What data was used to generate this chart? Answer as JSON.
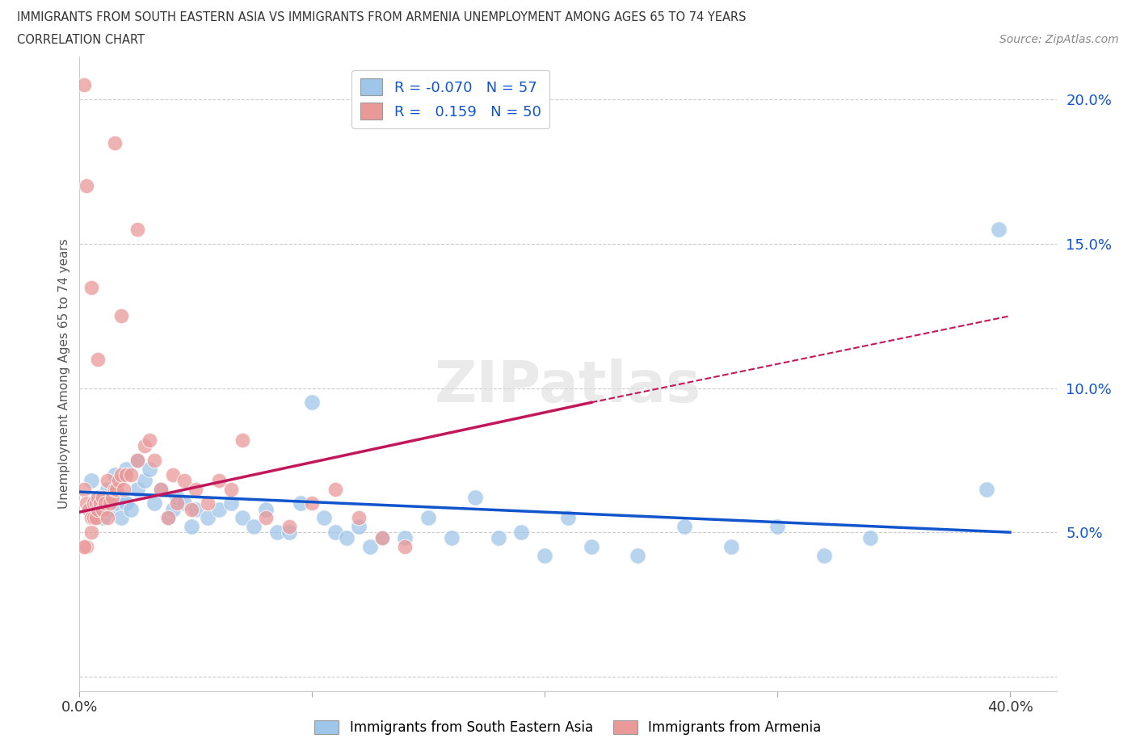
{
  "title_line1": "IMMIGRANTS FROM SOUTH EASTERN ASIA VS IMMIGRANTS FROM ARMENIA UNEMPLOYMENT AMONG AGES 65 TO 74 YEARS",
  "title_line2": "CORRELATION CHART",
  "source": "Source: ZipAtlas.com",
  "ylabel": "Unemployment Among Ages 65 to 74 years",
  "xlim": [
    0.0,
    0.42
  ],
  "ylim": [
    -0.005,
    0.215
  ],
  "yticks": [
    0.0,
    0.05,
    0.1,
    0.15,
    0.2
  ],
  "ytick_labels": [
    "",
    "5.0%",
    "10.0%",
    "15.0%",
    "20.0%"
  ],
  "xticks": [
    0.0,
    0.1,
    0.2,
    0.3,
    0.4
  ],
  "xtick_labels": [
    "0.0%",
    "",
    "",
    "",
    "40.0%"
  ],
  "blue_label": "Immigrants from South Eastern Asia",
  "pink_label": "Immigrants from Armenia",
  "blue_r": -0.07,
  "blue_n": 57,
  "pink_r": 0.159,
  "pink_n": 50,
  "blue_color": "#9fc5e8",
  "pink_color": "#ea9999",
  "blue_line_color": "#1155cc",
  "pink_line_color": "#c2185b",
  "watermark": "ZIPatlas",
  "blue_scatter_x": [
    0.005,
    0.008,
    0.01,
    0.01,
    0.012,
    0.013,
    0.015,
    0.016,
    0.018,
    0.018,
    0.02,
    0.02,
    0.022,
    0.025,
    0.025,
    0.028,
    0.03,
    0.032,
    0.035,
    0.038,
    0.04,
    0.042,
    0.045,
    0.048,
    0.05,
    0.055,
    0.06,
    0.065,
    0.07,
    0.075,
    0.08,
    0.085,
    0.09,
    0.095,
    0.1,
    0.105,
    0.11,
    0.115,
    0.12,
    0.125,
    0.13,
    0.14,
    0.15,
    0.16,
    0.17,
    0.18,
    0.19,
    0.2,
    0.21,
    0.22,
    0.24,
    0.26,
    0.28,
    0.3,
    0.32,
    0.34,
    0.39
  ],
  "blue_scatter_y": [
    0.068,
    0.062,
    0.055,
    0.058,
    0.065,
    0.058,
    0.07,
    0.06,
    0.055,
    0.062,
    0.072,
    0.06,
    0.058,
    0.075,
    0.065,
    0.068,
    0.072,
    0.06,
    0.065,
    0.055,
    0.058,
    0.062,
    0.06,
    0.052,
    0.058,
    0.055,
    0.058,
    0.06,
    0.055,
    0.052,
    0.058,
    0.05,
    0.05,
    0.06,
    0.095,
    0.055,
    0.05,
    0.048,
    0.052,
    0.045,
    0.048,
    0.048,
    0.055,
    0.048,
    0.062,
    0.048,
    0.05,
    0.042,
    0.055,
    0.045,
    0.042,
    0.052,
    0.045,
    0.052,
    0.042,
    0.048,
    0.065
  ],
  "blue_outlier_x": [
    0.395
  ],
  "blue_outlier_y": [
    0.155
  ],
  "pink_scatter_x": [
    0.002,
    0.003,
    0.003,
    0.004,
    0.005,
    0.005,
    0.006,
    0.006,
    0.007,
    0.007,
    0.008,
    0.008,
    0.009,
    0.01,
    0.01,
    0.011,
    0.012,
    0.012,
    0.013,
    0.014,
    0.015,
    0.016,
    0.017,
    0.018,
    0.019,
    0.02,
    0.022,
    0.025,
    0.028,
    0.03,
    0.032,
    0.035,
    0.038,
    0.04,
    0.042,
    0.045,
    0.048,
    0.05,
    0.055,
    0.06,
    0.065,
    0.07,
    0.08,
    0.09,
    0.1,
    0.11,
    0.12,
    0.13,
    0.14,
    0.002
  ],
  "pink_scatter_y": [
    0.065,
    0.045,
    0.06,
    0.058,
    0.05,
    0.055,
    0.06,
    0.055,
    0.055,
    0.06,
    0.058,
    0.062,
    0.06,
    0.062,
    0.058,
    0.06,
    0.068,
    0.055,
    0.06,
    0.062,
    0.065,
    0.065,
    0.068,
    0.07,
    0.065,
    0.07,
    0.07,
    0.075,
    0.08,
    0.082,
    0.075,
    0.065,
    0.055,
    0.07,
    0.06,
    0.068,
    0.058,
    0.065,
    0.06,
    0.068,
    0.065,
    0.082,
    0.055,
    0.052,
    0.06,
    0.065,
    0.055,
    0.048,
    0.045,
    0.045
  ],
  "pink_outlier_x": [
    0.015,
    0.025,
    0.002,
    0.003,
    0.018,
    0.005,
    0.008
  ],
  "pink_outlier_y": [
    0.185,
    0.155,
    0.205,
    0.17,
    0.125,
    0.135,
    0.11
  ],
  "background_color": "#ffffff",
  "grid_color": "#cccccc",
  "blue_trend_x0": 0.0,
  "blue_trend_y0": 0.064,
  "blue_trend_x1": 0.4,
  "blue_trend_y1": 0.05,
  "pink_trend_solid_x0": 0.0,
  "pink_trend_solid_y0": 0.057,
  "pink_trend_solid_x1": 0.22,
  "pink_trend_solid_y1": 0.095,
  "pink_trend_dash_x0": 0.22,
  "pink_trend_dash_y0": 0.095,
  "pink_trend_dash_x1": 0.4,
  "pink_trend_dash_y1": 0.125
}
